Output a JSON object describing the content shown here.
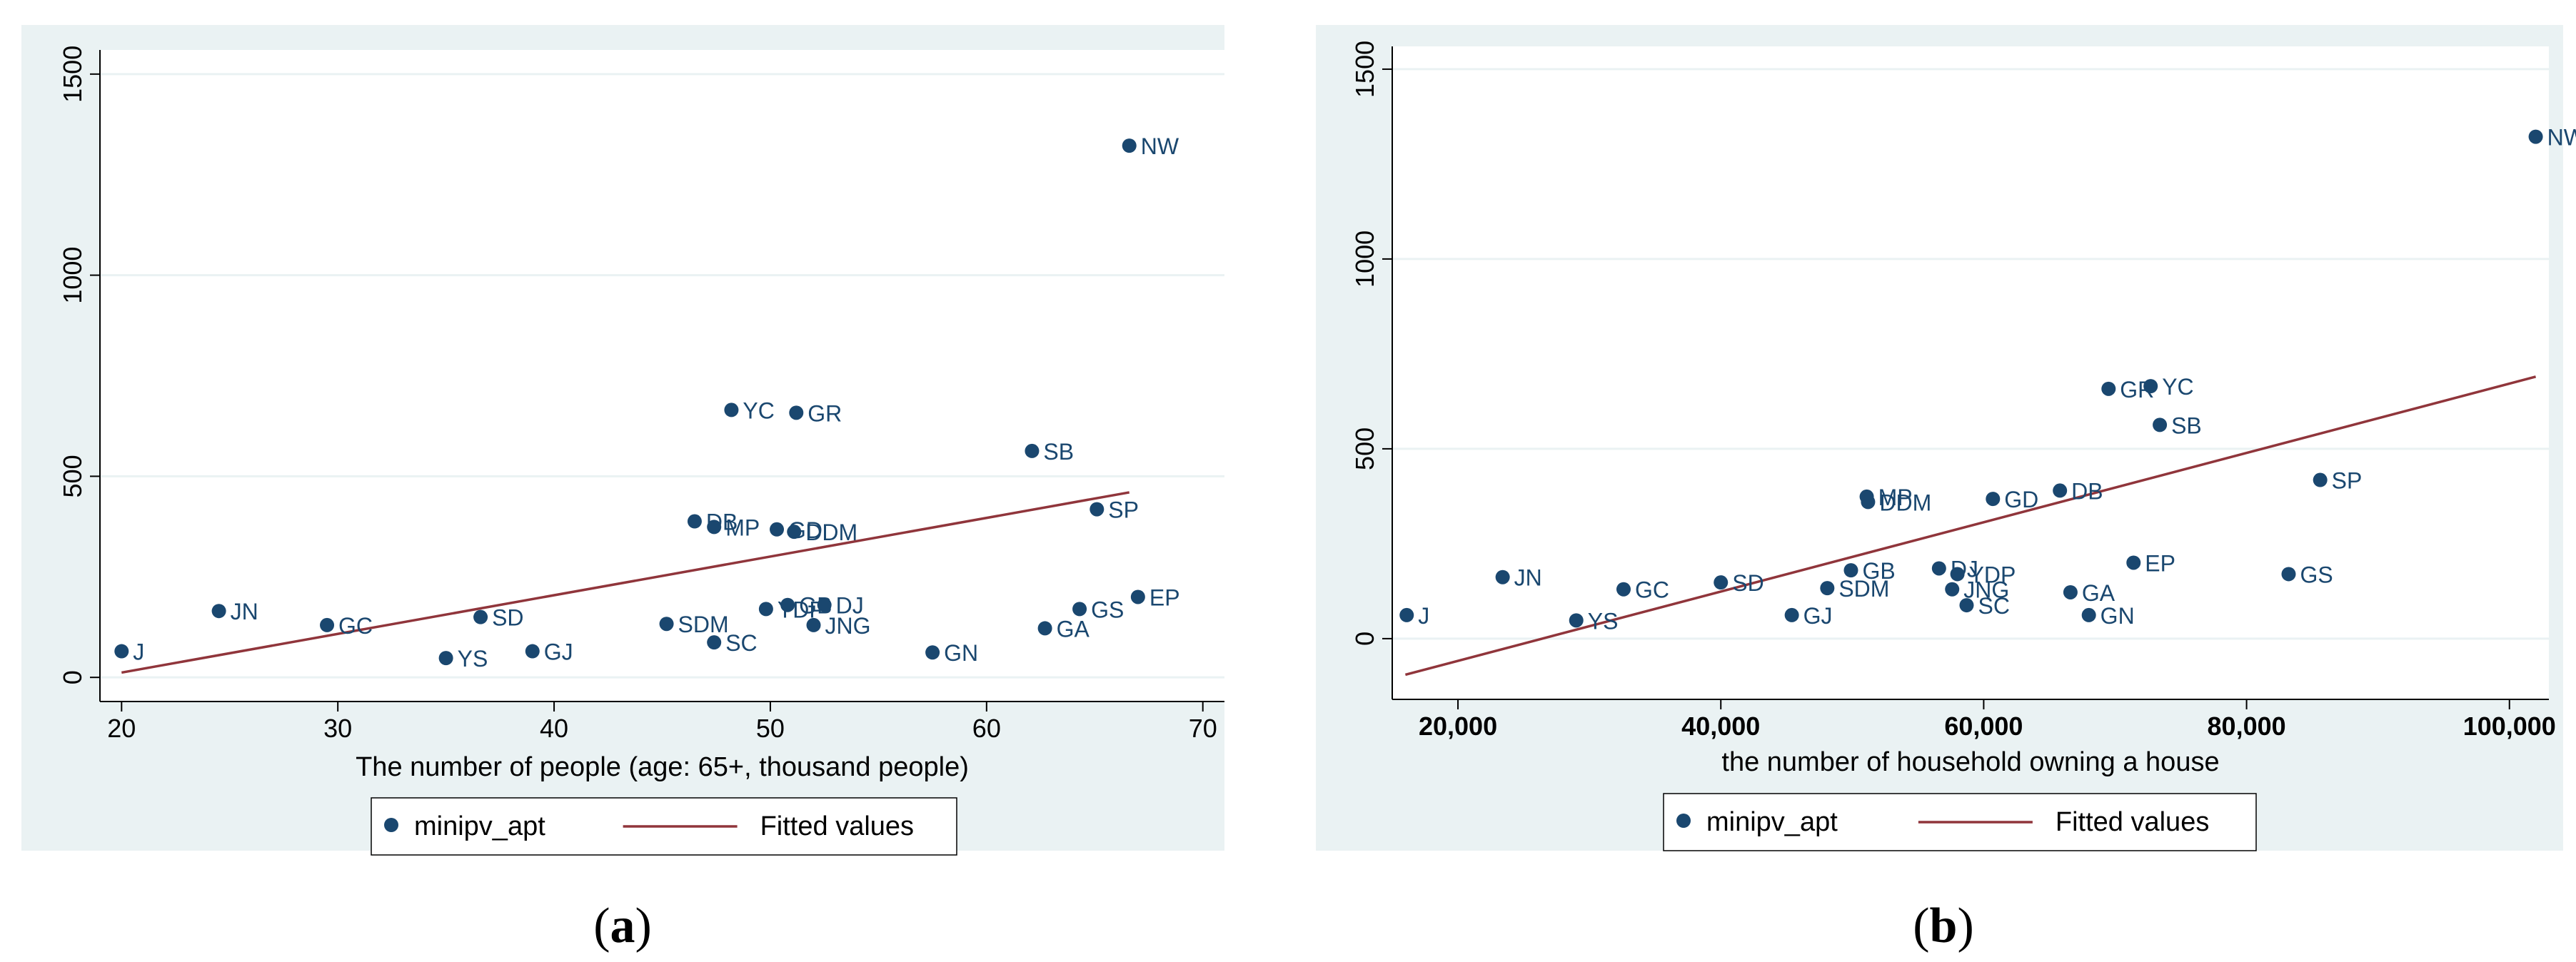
{
  "chart_data": [
    {
      "type": "scatter",
      "panel_label": "a",
      "xlabel": "The number of people (age: 65+, thousand people)",
      "ylabel": "",
      "xlim": [
        19,
        71
      ],
      "ylim": [
        -60,
        1560
      ],
      "xticks": [
        20,
        30,
        40,
        50,
        60,
        70
      ],
      "xtick_labels": [
        "20",
        "30",
        "40",
        "50",
        "60",
        "70"
      ],
      "yticks": [
        0,
        500,
        1000,
        1500
      ],
      "ytick_labels": [
        "0",
        "500",
        "1000",
        "1500"
      ],
      "grid": "horizontal",
      "legend": "bottom",
      "colors": {
        "scatter": "#1a476f",
        "fit": "#90353b",
        "background": "#eaf2f3"
      },
      "series": [
        {
          "name": "minipv_apt",
          "kind": "scatter",
          "points": [
            {
              "label": "J",
              "x": 20.0,
              "y": 65
            },
            {
              "label": "JN",
              "x": 24.5,
              "y": 165
            },
            {
              "label": "GC",
              "x": 29.5,
              "y": 130
            },
            {
              "label": "YS",
              "x": 35.0,
              "y": 48
            },
            {
              "label": "SD",
              "x": 36.6,
              "y": 150
            },
            {
              "label": "GJ",
              "x": 39.0,
              "y": 65
            },
            {
              "label": "SDM",
              "x": 45.2,
              "y": 133
            },
            {
              "label": "DB",
              "x": 46.5,
              "y": 388
            },
            {
              "label": "MP",
              "x": 47.4,
              "y": 374
            },
            {
              "label": "SC",
              "x": 47.4,
              "y": 87
            },
            {
              "label": "YC",
              "x": 48.2,
              "y": 665
            },
            {
              "label": "YDP",
              "x": 49.8,
              "y": 170
            },
            {
              "label": "GD",
              "x": 50.3,
              "y": 368
            },
            {
              "label": "GB",
              "x": 50.8,
              "y": 180
            },
            {
              "label": "DDM",
              "x": 51.1,
              "y": 362
            },
            {
              "label": "GR",
              "x": 51.2,
              "y": 658
            },
            {
              "label": "JNG",
              "x": 52.0,
              "y": 130
            },
            {
              "label": "DJ",
              "x": 52.5,
              "y": 180
            },
            {
              "label": "GN",
              "x": 57.5,
              "y": 62
            },
            {
              "label": "SB",
              "x": 62.1,
              "y": 563
            },
            {
              "label": "GA",
              "x": 62.7,
              "y": 122
            },
            {
              "label": "GS",
              "x": 64.3,
              "y": 170
            },
            {
              "label": "SP",
              "x": 65.1,
              "y": 418
            },
            {
              "label": "NW",
              "x": 66.6,
              "y": 1322
            },
            {
              "label": "EP",
              "x": 67.0,
              "y": 200
            }
          ]
        },
        {
          "name": "Fitted values",
          "kind": "line",
          "x": [
            20,
            66.6
          ],
          "y": [
            12,
            460
          ]
        }
      ]
    },
    {
      "type": "scatter",
      "panel_label": "b",
      "xlabel": "the number of household owning a house",
      "ylabel": "",
      "xlim": [
        15000,
        103000
      ],
      "ylim": [
        -160,
        1560
      ],
      "xticks": [
        20000,
        40000,
        60000,
        80000,
        100000
      ],
      "xtick_labels": [
        "20,000",
        "40,000",
        "60,000",
        "80,000",
        "100,000"
      ],
      "yticks": [
        0,
        500,
        1000,
        1500
      ],
      "ytick_labels": [
        "0",
        "500",
        "1000",
        "1500"
      ],
      "grid": "horizontal",
      "legend": "bottom",
      "colors": {
        "scatter": "#1a476f",
        "fit": "#90353b",
        "background": "#eaf2f3"
      },
      "series": [
        {
          "name": "minipv_apt",
          "kind": "scatter",
          "points": [
            {
              "label": "J",
              "x": 16100,
              "y": 62
            },
            {
              "label": "JN",
              "x": 23400,
              "y": 162
            },
            {
              "label": "YS",
              "x": 29000,
              "y": 48
            },
            {
              "label": "GC",
              "x": 32600,
              "y": 130
            },
            {
              "label": "SD",
              "x": 40000,
              "y": 148
            },
            {
              "label": "GJ",
              "x": 45400,
              "y": 62
            },
            {
              "label": "SDM",
              "x": 48100,
              "y": 133
            },
            {
              "label": "GB",
              "x": 49900,
              "y": 180
            },
            {
              "label": "MP",
              "x": 51100,
              "y": 374
            },
            {
              "label": "DDM",
              "x": 51200,
              "y": 360
            },
            {
              "label": "DJ",
              "x": 56600,
              "y": 185
            },
            {
              "label": "JNG",
              "x": 57600,
              "y": 130
            },
            {
              "label": "YDP",
              "x": 58000,
              "y": 170
            },
            {
              "label": "SC",
              "x": 58700,
              "y": 88
            },
            {
              "label": "GD",
              "x": 60700,
              "y": 368
            },
            {
              "label": "DB",
              "x": 65800,
              "y": 390
            },
            {
              "label": "GA",
              "x": 66600,
              "y": 122
            },
            {
              "label": "GN",
              "x": 68000,
              "y": 62
            },
            {
              "label": "GR",
              "x": 69500,
              "y": 658
            },
            {
              "label": "EP",
              "x": 71400,
              "y": 200
            },
            {
              "label": "YC",
              "x": 72700,
              "y": 665
            },
            {
              "label": "SB",
              "x": 73400,
              "y": 563
            },
            {
              "label": "GS",
              "x": 83200,
              "y": 170
            },
            {
              "label": "SP",
              "x": 85600,
              "y": 418
            },
            {
              "label": "NW",
              "x": 102000,
              "y": 1322
            }
          ]
        },
        {
          "name": "Fitted values",
          "kind": "line",
          "x": [
            16000,
            102000
          ],
          "y": [
            -95,
            690
          ]
        }
      ]
    }
  ]
}
